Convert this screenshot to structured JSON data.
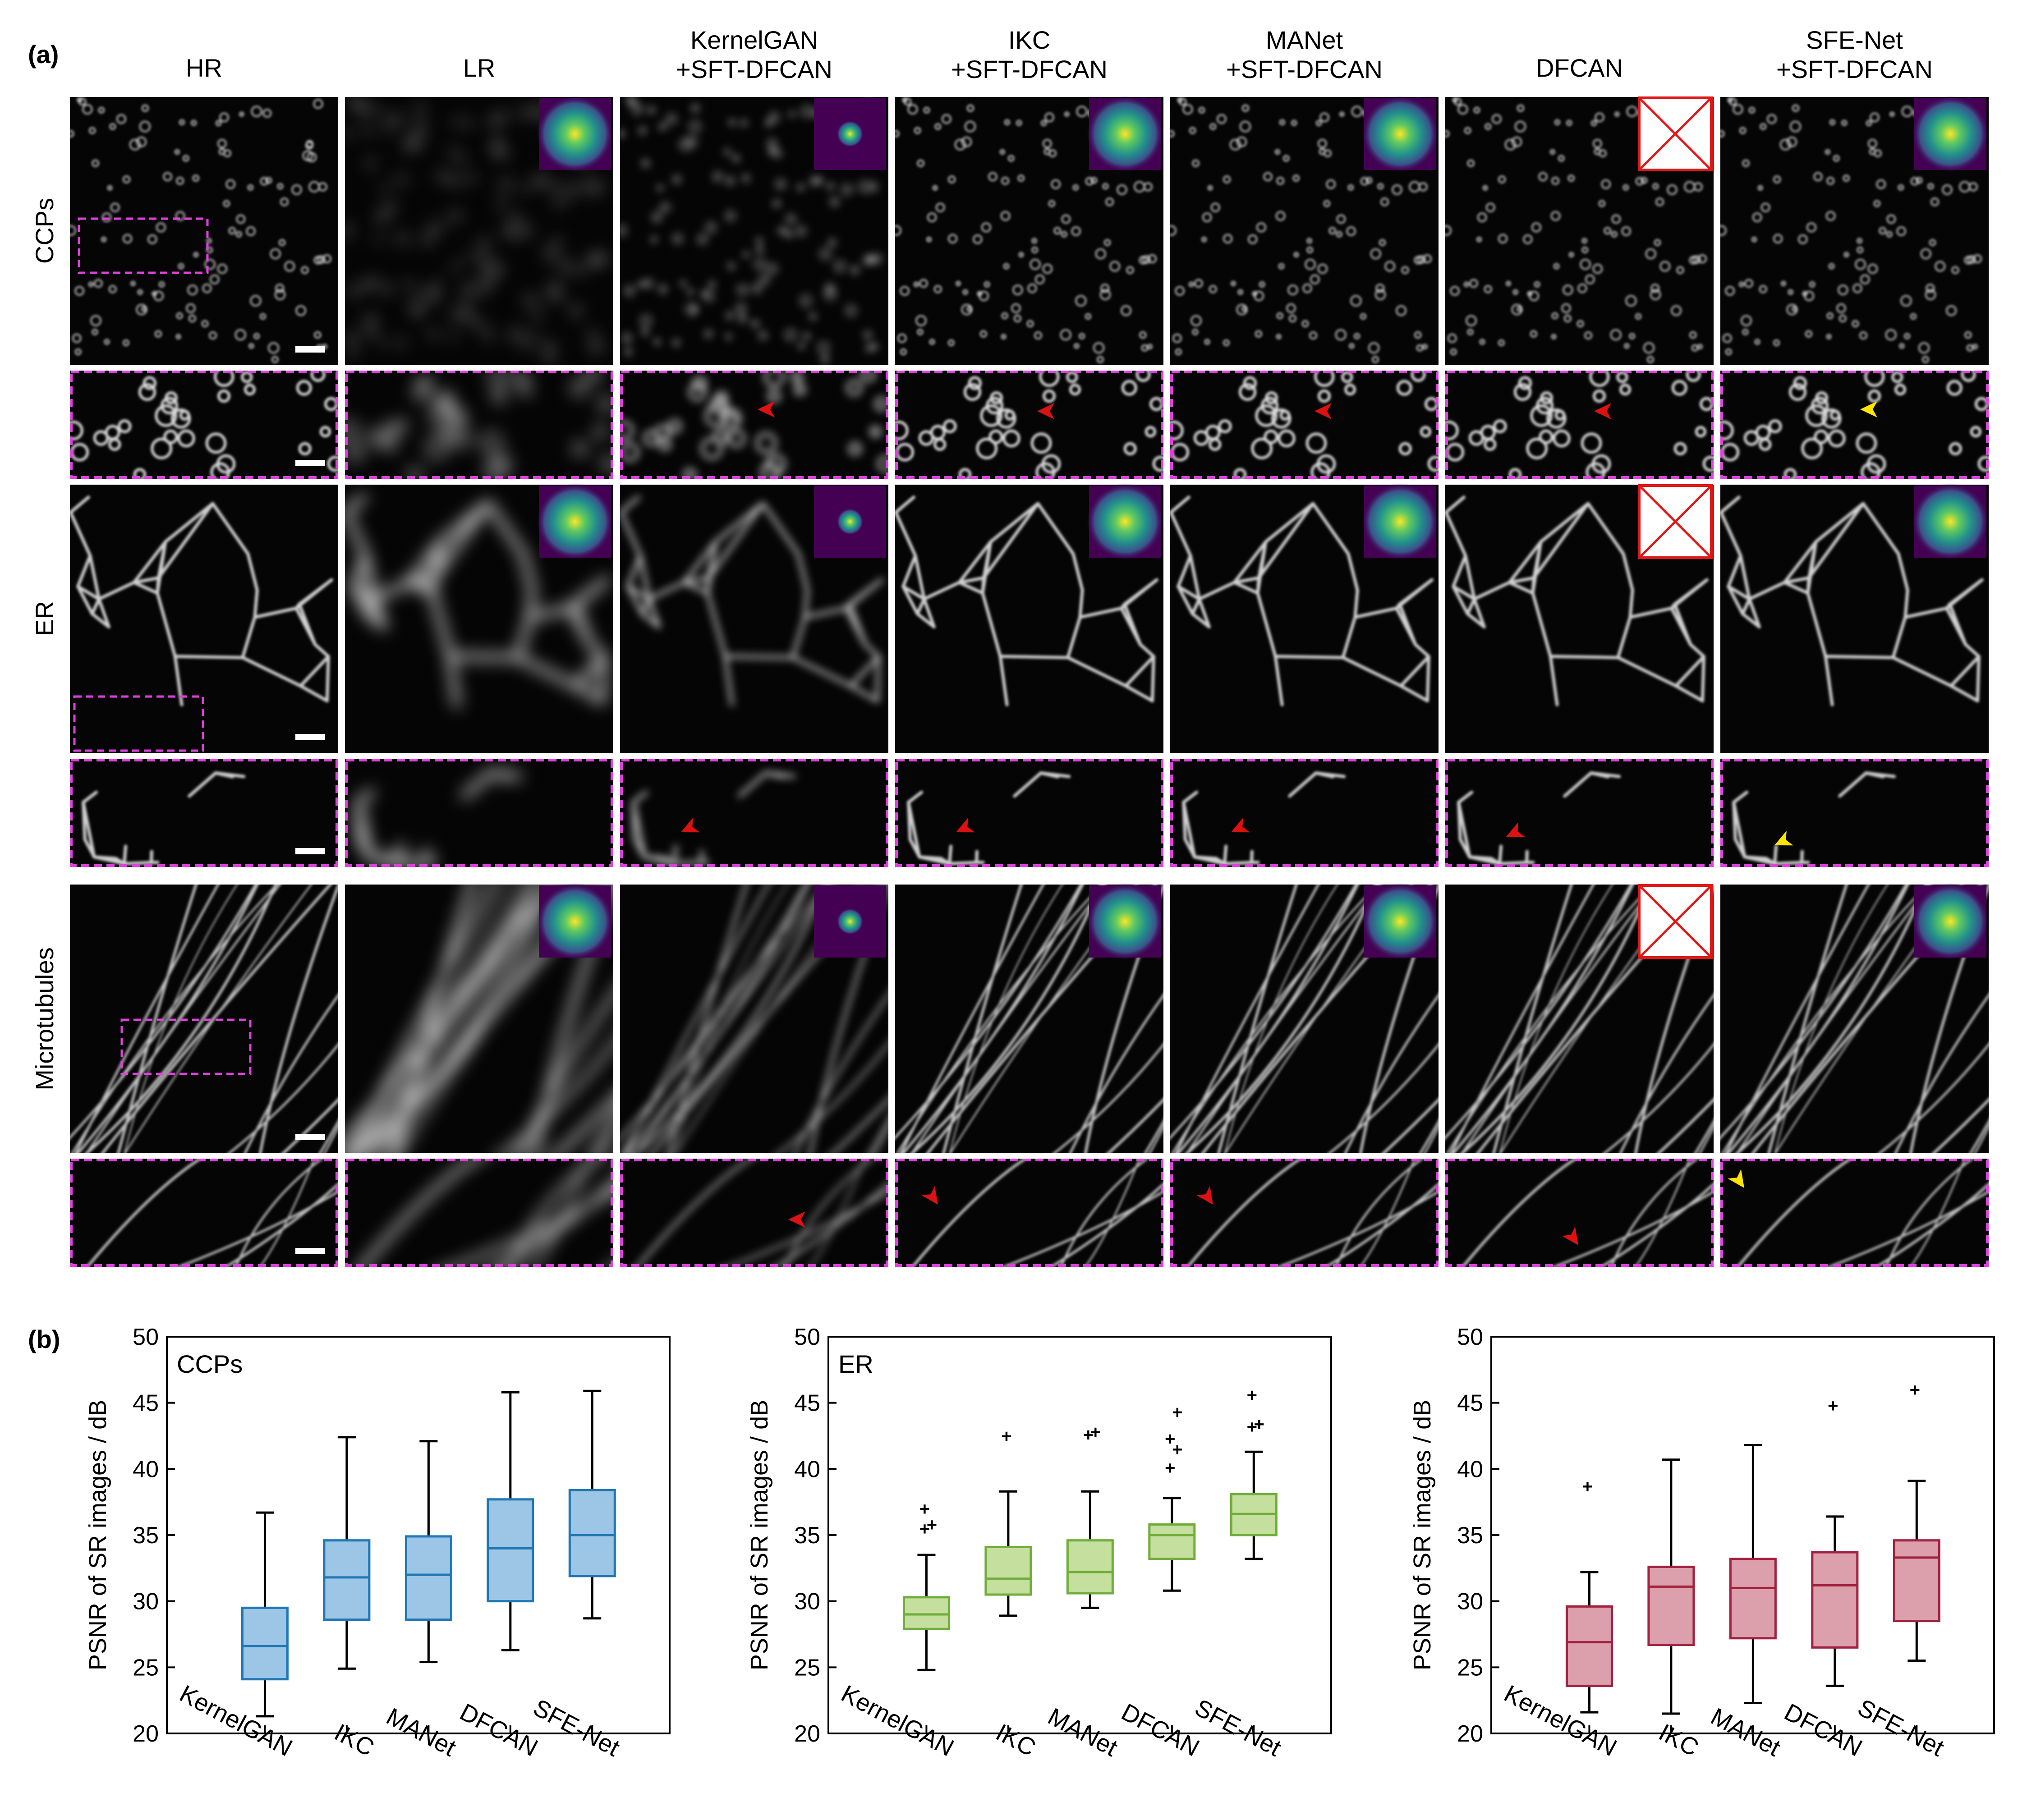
{
  "panel_a": {
    "label": "(a)",
    "columns": [
      "HR",
      "LR",
      "KernelGAN\n+SFT-DFCAN",
      "IKC\n+SFT-DFCAN",
      "MANet\n+SFT-DFCAN",
      "DFCAN",
      "SFE-Net\n+SFT-DFCAN"
    ],
    "rows": [
      "CCPs",
      "ER",
      "Microtubules"
    ]
  },
  "panel_b": {
    "label": "(b)"
  },
  "colors": {
    "magenta_dashed": "#e040e0",
    "red_arrow": "#dd1111",
    "yellow_arrow": "#ffe400",
    "ccps_box": "#1f77b4",
    "ccps_fill": "#9dc6e6",
    "er_box": "#70ad3a",
    "er_fill": "#c5df9e",
    "mt_box": "#a3203e",
    "mt_fill": "#dba0ac"
  },
  "chart_data": [
    {
      "type": "box",
      "annotation": "CCPs",
      "ylabel": "PSNR of SR images / dB",
      "ylim": [
        20,
        50
      ],
      "yticks": [
        20,
        25,
        30,
        35,
        40,
        45,
        50
      ],
      "categories": [
        "KernelGAN",
        "IKC",
        "MANet",
        "DFCAN",
        "SFE-Net"
      ],
      "boxes": [
        {
          "whislo": 21.3,
          "q1": 24.1,
          "med": 26.6,
          "q3": 29.5,
          "whishi": 36.7,
          "fliers": []
        },
        {
          "whislo": 24.9,
          "q1": 28.6,
          "med": 31.8,
          "q3": 34.6,
          "whishi": 42.4,
          "fliers": []
        },
        {
          "whislo": 25.4,
          "q1": 28.6,
          "med": 32.0,
          "q3": 34.9,
          "whishi": 42.1,
          "fliers": []
        },
        {
          "whislo": 26.3,
          "q1": 30.0,
          "med": 34.0,
          "q3": 37.7,
          "whishi": 45.8,
          "fliers": []
        },
        {
          "whislo": 28.7,
          "q1": 31.9,
          "med": 35.0,
          "q3": 38.4,
          "whishi": 45.9,
          "fliers": []
        }
      ]
    },
    {
      "type": "box",
      "annotation": "ER",
      "ylabel": "PSNR of SR images / dB",
      "ylim": [
        20,
        50
      ],
      "yticks": [
        20,
        25,
        30,
        35,
        40,
        45,
        50
      ],
      "categories": [
        "KernelGAN",
        "IKC",
        "MANet",
        "DFCAN",
        "SFE-Net"
      ],
      "boxes": [
        {
          "whislo": 24.8,
          "q1": 27.9,
          "med": 29.0,
          "q3": 30.3,
          "whishi": 33.5,
          "fliers": [
            35.5,
            35.8,
            37.0
          ]
        },
        {
          "whislo": 28.9,
          "q1": 30.5,
          "med": 31.7,
          "q3": 34.1,
          "whishi": 38.3,
          "fliers": [
            42.5
          ]
        },
        {
          "whislo": 29.5,
          "q1": 30.6,
          "med": 32.2,
          "q3": 34.6,
          "whishi": 38.3,
          "fliers": [
            42.6,
            42.8
          ]
        },
        {
          "whislo": 30.8,
          "q1": 33.2,
          "med": 35.0,
          "q3": 35.8,
          "whishi": 37.8,
          "fliers": [
            40.1,
            41.5,
            42.3,
            44.3
          ]
        },
        {
          "whislo": 33.2,
          "q1": 35.0,
          "med": 36.6,
          "q3": 38.1,
          "whishi": 41.3,
          "fliers": [
            43.2,
            43.4,
            45.6
          ]
        }
      ]
    },
    {
      "type": "box",
      "annotation": "",
      "ylabel": "PSNR of SR images / dB",
      "ylim": [
        20,
        50
      ],
      "yticks": [
        20,
        25,
        30,
        35,
        40,
        45,
        50
      ],
      "categories": [
        "KernelGAN",
        "IKC",
        "MANet",
        "DFCAN",
        "SFE-Net"
      ],
      "boxes": [
        {
          "whislo": 21.6,
          "q1": 23.6,
          "med": 26.9,
          "q3": 29.6,
          "whishi": 32.2,
          "fliers": [
            38.7
          ]
        },
        {
          "whislo": 21.5,
          "q1": 26.7,
          "med": 31.1,
          "q3": 32.6,
          "whishi": 40.7,
          "fliers": []
        },
        {
          "whislo": 22.3,
          "q1": 27.2,
          "med": 31.0,
          "q3": 33.2,
          "whishi": 41.8,
          "fliers": []
        },
        {
          "whislo": 23.6,
          "q1": 26.5,
          "med": 31.2,
          "q3": 33.7,
          "whishi": 36.4,
          "fliers": [
            44.8
          ]
        },
        {
          "whislo": 25.5,
          "q1": 28.5,
          "med": 33.3,
          "q3": 34.6,
          "whishi": 39.1,
          "fliers": [
            46.0
          ]
        }
      ]
    }
  ]
}
